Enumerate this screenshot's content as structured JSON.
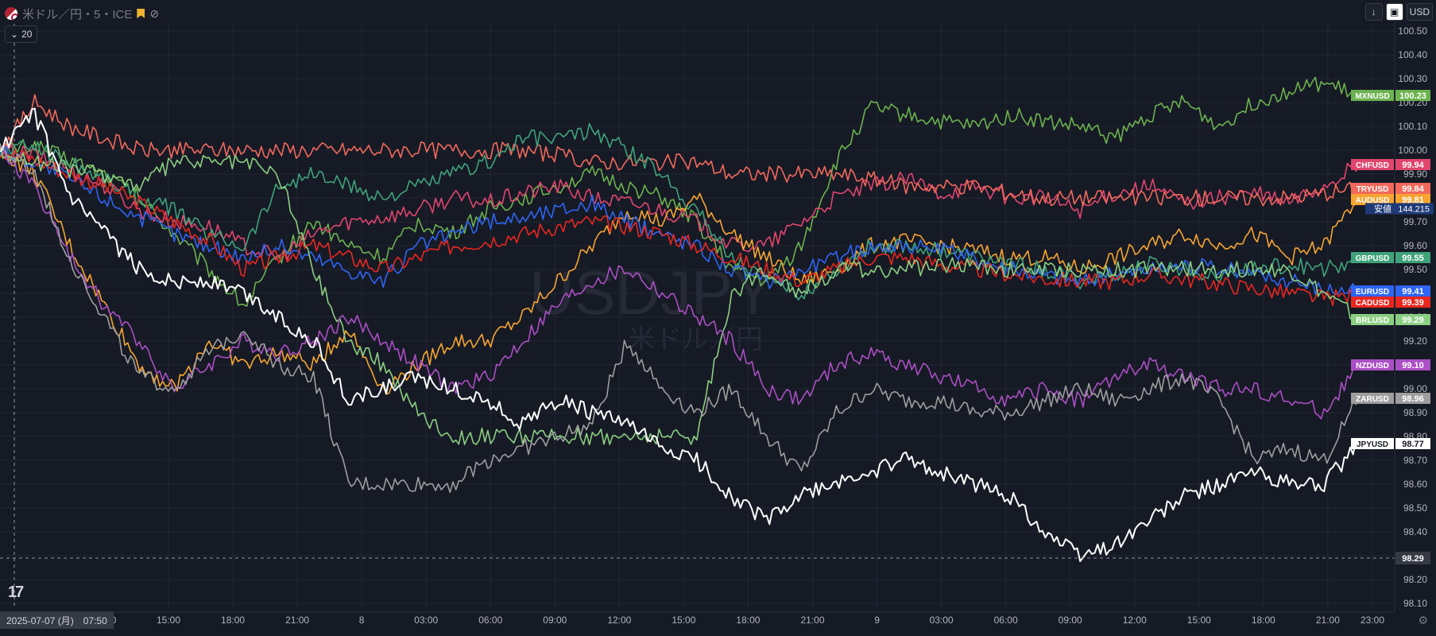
{
  "header": {
    "symbol_label": "米ドル／円・5・ICE",
    "lookback_value": "20",
    "currency_label": "USD"
  },
  "watermark": {
    "symbol": "USDJPY",
    "name": "米ドル／円"
  },
  "crosshair": {
    "time_label": "2025-07-07 (月)　07:50",
    "price_label": "98.29",
    "price_value": 98.29
  },
  "bottom_partial_tick": "0",
  "colors": {
    "background": "#161a25",
    "grid": "#232733",
    "axis_text": "#b2b5be"
  },
  "chart_data": {
    "type": "line",
    "title": "",
    "xlabel": "",
    "ylabel": "",
    "ylim": [
      98.08,
      100.53
    ],
    "x_ticks": [
      "15:00",
      "18:00",
      "21:00",
      "8",
      "03:00",
      "06:00",
      "09:00",
      "12:00",
      "15:00",
      "18:00",
      "21:00",
      "9",
      "03:00",
      "06:00",
      "09:00",
      "12:00",
      "15:00",
      "18:00",
      "21:00",
      "23:00"
    ],
    "y_ticks": [
      98.1,
      98.2,
      98.3,
      98.4,
      98.5,
      98.6,
      98.7,
      98.8,
      98.9,
      99.0,
      99.1,
      99.2,
      99.3,
      99.4,
      99.5,
      99.6,
      99.7,
      99.8,
      99.9,
      100.0,
      100.1,
      100.2,
      100.3,
      100.4,
      100.5
    ],
    "y_tick_labels": [
      "98.10",
      "98.20",
      "98.30",
      "98.40",
      "98.50",
      "98.60",
      "98.70",
      "98.80",
      "98.90",
      "99.00",
      "99.10",
      "99.20",
      "99.30",
      "99.40",
      "99.50",
      "99.60",
      "99.70",
      "99.80",
      "99.90",
      "100.00",
      "100.10",
      "100.20",
      "100.30",
      "100.40",
      "100.50"
    ],
    "grid": true,
    "legend_placement": "right-axis-labels",
    "high_label": {
      "label": "安値",
      "value": "144.215"
    },
    "series": [
      {
        "name": "MXNUSD",
        "color": "#6cb24f",
        "last_label": "100.23",
        "values": [
          100.0,
          100.02,
          99.96,
          99.9,
          99.8,
          99.65,
          99.5,
          99.35,
          99.55,
          99.7,
          99.6,
          99.55,
          99.7,
          99.65,
          99.75,
          99.8,
          99.85,
          99.9,
          99.85,
          99.8,
          99.7,
          99.5,
          99.45,
          99.6,
          99.95,
          100.18,
          100.15,
          100.12,
          100.1,
          100.15,
          100.12,
          100.1,
          100.05,
          100.15,
          100.2,
          100.1,
          100.2,
          100.25,
          100.28,
          100.23
        ]
      },
      {
        "name": "CHFUSD",
        "color": "#e0456e",
        "last_label": "99.94",
        "values": [
          100.0,
          99.98,
          99.92,
          99.85,
          99.75,
          99.7,
          99.68,
          99.6,
          99.55,
          99.65,
          99.7,
          99.72,
          99.75,
          99.8,
          99.78,
          99.82,
          99.85,
          99.8,
          99.78,
          99.75,
          99.7,
          99.6,
          99.6,
          99.7,
          99.8,
          99.85,
          99.88,
          99.82,
          99.85,
          99.8,
          99.8,
          99.75,
          99.82,
          99.85,
          99.78,
          99.8,
          99.82,
          99.78,
          99.85,
          99.94
        ]
      },
      {
        "name": "TRYUSD",
        "color": "#f2695c",
        "last_label": "99.84",
        "values": [
          100.0,
          100.2,
          100.1,
          100.05,
          100.0,
          100.0,
          100.0,
          100.0,
          100.0,
          100.0,
          100.0,
          100.0,
          100.0,
          100.0,
          100.0,
          100.0,
          99.98,
          99.95,
          99.95,
          99.95,
          99.95,
          99.9,
          99.9,
          99.9,
          99.9,
          99.88,
          99.85,
          99.85,
          99.85,
          99.82,
          99.8,
          99.8,
          99.8,
          99.8,
          99.8,
          99.8,
          99.8,
          99.8,
          99.82,
          99.84
        ]
      },
      {
        "name": "AUDUSD",
        "color": "#f7a531",
        "last_label": "99.81",
        "values": [
          100.0,
          99.9,
          99.6,
          99.35,
          99.1,
          99.0,
          99.2,
          99.1,
          99.15,
          99.1,
          99.25,
          99.0,
          99.1,
          99.2,
          99.2,
          99.3,
          99.45,
          99.6,
          99.75,
          99.7,
          99.8,
          99.65,
          99.55,
          99.45,
          99.5,
          99.6,
          99.62,
          99.6,
          99.58,
          99.55,
          99.55,
          99.5,
          99.55,
          99.6,
          99.65,
          99.6,
          99.65,
          99.55,
          99.6,
          99.81
        ]
      },
      {
        "name": "GBPUSD",
        "color": "#3fa37a",
        "last_label": "99.55",
        "values": [
          100.0,
          100.02,
          99.95,
          99.88,
          99.8,
          99.75,
          99.65,
          99.6,
          99.85,
          99.9,
          99.85,
          99.8,
          99.85,
          99.9,
          99.95,
          100.05,
          100.05,
          100.08,
          100.0,
          99.9,
          99.75,
          99.55,
          99.45,
          99.4,
          99.5,
          99.6,
          99.6,
          99.58,
          99.55,
          99.52,
          99.5,
          99.45,
          99.48,
          99.52,
          99.5,
          99.48,
          99.5,
          99.52,
          99.5,
          99.55
        ]
      },
      {
        "name": "EURUSD",
        "color": "#2e65f3",
        "last_label": "99.41",
        "values": [
          100.0,
          99.95,
          99.88,
          99.8,
          99.72,
          99.65,
          99.6,
          99.55,
          99.6,
          99.55,
          99.5,
          99.45,
          99.6,
          99.65,
          99.7,
          99.72,
          99.75,
          99.78,
          99.7,
          99.65,
          99.6,
          99.5,
          99.45,
          99.5,
          99.55,
          99.6,
          99.6,
          99.58,
          99.55,
          99.5,
          99.48,
          99.45,
          99.48,
          99.5,
          99.52,
          99.5,
          99.48,
          99.45,
          99.42,
          99.41
        ]
      },
      {
        "name": "CADUSD",
        "color": "#e9271f",
        "last_label": "99.39",
        "values": [
          100.0,
          99.96,
          99.9,
          99.85,
          99.78,
          99.7,
          99.62,
          99.5,
          99.55,
          99.6,
          99.55,
          99.5,
          99.55,
          99.6,
          99.62,
          99.65,
          99.68,
          99.7,
          99.68,
          99.65,
          99.6,
          99.55,
          99.5,
          99.45,
          99.5,
          99.55,
          99.55,
          99.52,
          99.5,
          99.48,
          99.46,
          99.45,
          99.45,
          99.48,
          99.46,
          99.44,
          99.42,
          99.4,
          99.38,
          99.39
        ]
      },
      {
        "name": "BRLUSD",
        "color": "#8ccf82",
        "last_label": "99.29",
        "values": [
          100.0,
          99.95,
          99.92,
          99.9,
          99.85,
          99.95,
          99.95,
          99.95,
          99.9,
          99.5,
          99.2,
          99.1,
          98.9,
          98.8,
          98.8,
          98.8,
          98.8,
          98.8,
          98.8,
          98.8,
          98.8,
          99.4,
          99.5,
          99.4,
          99.5,
          99.5,
          99.5,
          99.52,
          99.52,
          99.5,
          99.5,
          99.5,
          99.5,
          99.5,
          99.5,
          99.5,
          99.5,
          99.5,
          99.4,
          99.29
        ]
      },
      {
        "name": "NZDUSD",
        "color": "#ab4fc4",
        "last_label": "99.10",
        "values": [
          100.0,
          99.85,
          99.55,
          99.35,
          99.2,
          99.0,
          99.1,
          99.2,
          99.15,
          99.2,
          99.3,
          99.2,
          99.1,
          99.0,
          99.05,
          99.2,
          99.35,
          99.45,
          99.5,
          99.4,
          99.3,
          99.2,
          99.0,
          98.95,
          99.1,
          99.15,
          99.1,
          99.05,
          99.0,
          98.95,
          99.0,
          98.95,
          99.05,
          99.1,
          99.05,
          99.0,
          99.0,
          98.95,
          98.9,
          99.1
        ]
      },
      {
        "name": "ZARUSD",
        "color": "#9e9e9e",
        "last_label": "98.96",
        "values": [
          100.0,
          99.9,
          99.55,
          99.3,
          99.05,
          99.0,
          99.15,
          99.25,
          99.1,
          99.05,
          98.6,
          98.6,
          98.6,
          98.6,
          98.7,
          98.75,
          98.8,
          98.85,
          99.2,
          99.0,
          98.9,
          99.0,
          98.8,
          98.65,
          98.9,
          99.0,
          98.95,
          98.95,
          98.9,
          98.9,
          98.95,
          99.0,
          98.95,
          99.0,
          99.05,
          98.95,
          98.7,
          98.75,
          98.7,
          98.96
        ]
      },
      {
        "name": "JPYUSD",
        "color": "#ffffff",
        "last_label": "98.77",
        "values": [
          100.0,
          100.15,
          99.8,
          99.65,
          99.5,
          99.45,
          99.45,
          99.4,
          99.3,
          99.2,
          98.95,
          99.0,
          99.05,
          99.0,
          98.95,
          98.85,
          98.95,
          98.9,
          98.85,
          98.75,
          98.7,
          98.55,
          98.45,
          98.55,
          98.6,
          98.65,
          98.7,
          98.65,
          98.6,
          98.55,
          98.4,
          98.3,
          98.35,
          98.45,
          98.55,
          98.6,
          98.65,
          98.6,
          98.6,
          98.77
        ]
      }
    ]
  }
}
